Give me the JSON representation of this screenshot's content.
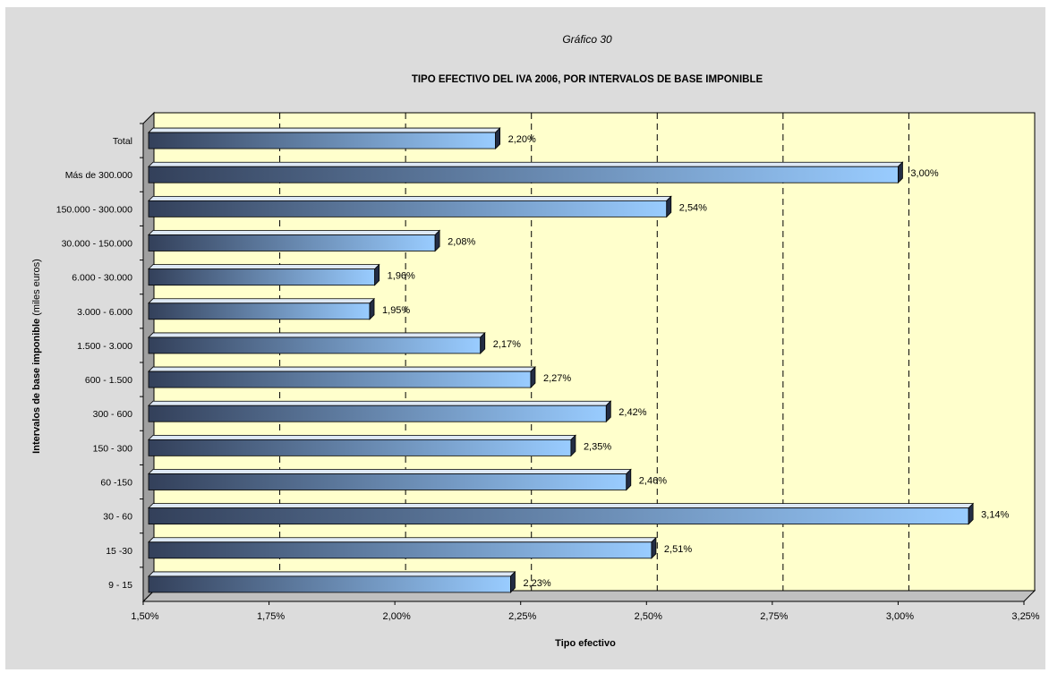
{
  "chart_data": {
    "type": "bar",
    "orientation": "horizontal",
    "supertitle": "Gráfico 30",
    "title": "TIPO EFECTIVO DEL IVA 2006, POR INTERVALOS DE BASE IMPONIBLE",
    "xlabel": "Tipo efectivo",
    "ylabel_bold": "Intervalos de base imponible",
    "ylabel_rest": " (miles euros)",
    "xlim": [
      1.5,
      3.25
    ],
    "xticks": [
      1.5,
      1.75,
      2.0,
      2.25,
      2.5,
      2.75,
      3.0,
      3.25
    ],
    "xtick_labels": [
      "1,50%",
      "1,75%",
      "2,00%",
      "2,25%",
      "2,50%",
      "2,75%",
      "3,00%",
      "3,25%"
    ],
    "categories": [
      "Total",
      "Más de 300.000",
      "150.000 - 300.000",
      "30.000 - 150.000",
      "6.000 - 30.000",
      "3.000 - 6.000",
      "1.500 - 3.000",
      "600 - 1.500",
      "300 - 600",
      "150 - 300",
      "60 -150",
      "30 - 60",
      "15 -30",
      "9 - 15"
    ],
    "values": [
      2.2,
      3.0,
      2.54,
      2.08,
      1.96,
      1.95,
      2.17,
      2.27,
      2.42,
      2.35,
      2.46,
      3.14,
      2.51,
      2.23
    ],
    "value_labels": [
      "2,20%",
      "3,00%",
      "2,54%",
      "2,08%",
      "1,96%",
      "1,95%",
      "2,17%",
      "2,27%",
      "2,42%",
      "2,35%",
      "2,46%",
      "3,14%",
      "2,51%",
      "2,23%"
    ],
    "grid": "vertical dashed",
    "colors": {
      "background": "#dcdcdc",
      "plot": "#ffffcc",
      "bar_dark": "#33405a",
      "bar_light": "#99ccff",
      "bar_top": "#dde8f5",
      "bar_side": "#232d44"
    }
  }
}
